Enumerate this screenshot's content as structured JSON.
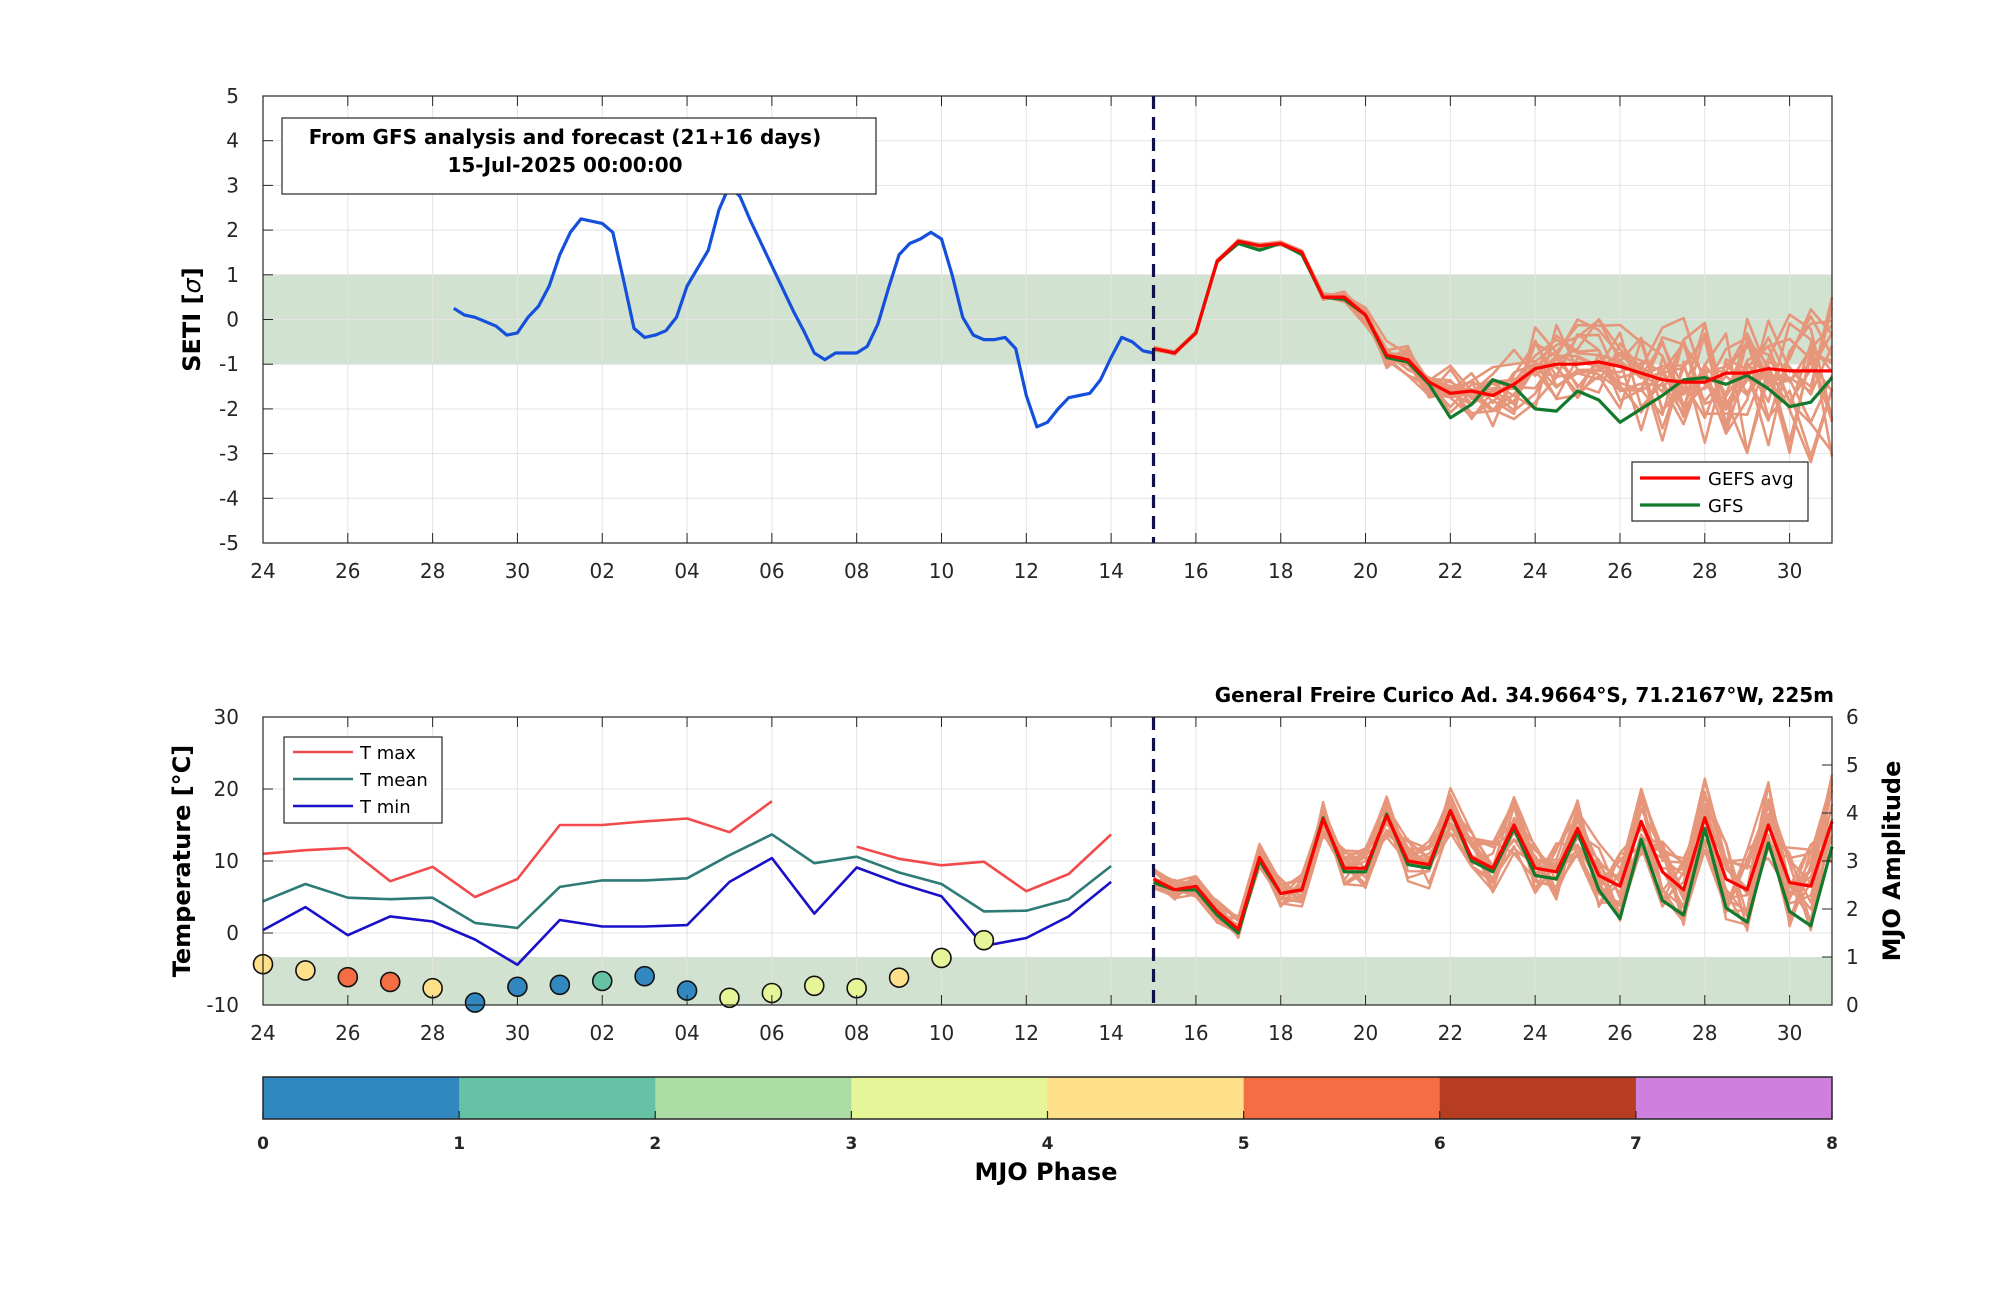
{
  "colors": {
    "observed": "#1450dc",
    "gefs_avg": "#ff0000",
    "gfs": "#117a2c",
    "ensemble": "#e6967a",
    "band": "#d2e2d0",
    "tmax": "#f24a4a",
    "tmean": "#2e7b76",
    "tmin": "#1a10c8",
    "divider": "#10104a"
  },
  "chart_data": [
    {
      "type": "line",
      "panel": "seti",
      "annotation": {
        "line1": "From GFS analysis and forecast (21+16 days)",
        "line2": "15-Jul-2025 00:00:00"
      },
      "ylabel": "SETI [σ]",
      "ylabel_text": "SETI [",
      "ylabel_sym": "σ",
      "ylabel_end": "]",
      "xlim": [
        0,
        37
      ],
      "ylim": [
        -5,
        5
      ],
      "yticks": [
        -5,
        -4,
        -3,
        -2,
        -1,
        0,
        1,
        2,
        3,
        4,
        5
      ],
      "xticks": [
        0,
        2,
        4,
        6,
        8,
        10,
        12,
        14,
        16,
        18,
        20,
        22,
        24,
        26,
        28,
        30,
        32,
        34,
        36
      ],
      "xticklabels": [
        "24",
        "26",
        "28",
        "30",
        "02",
        "04",
        "06",
        "08",
        "10",
        "12",
        "14",
        "16",
        "18",
        "20",
        "22",
        "24",
        "26",
        "28",
        "30"
      ],
      "band": [
        -1,
        1
      ],
      "forecast_start": 21,
      "grid": true,
      "legend_placement": "bottom-right",
      "legend": [
        "GEFS avg",
        "GFS"
      ],
      "series": [
        {
          "name": "observed",
          "x": [
            4.5,
            4.75,
            5,
            5.25,
            5.5,
            5.75,
            6,
            6.25,
            6.5,
            6.75,
            7,
            7.25,
            7.5,
            7.75,
            8,
            8.25,
            8.5,
            8.75,
            9,
            9.25,
            9.5,
            9.75,
            10,
            10.25,
            10.5,
            10.75,
            11,
            11.25,
            11.5,
            11.75,
            12,
            12.25,
            12.5,
            12.75,
            13,
            13.25,
            13.5,
            13.75,
            14,
            14.25,
            14.5,
            14.75,
            15,
            15.25,
            15.5,
            15.75,
            16,
            16.25,
            16.5,
            16.75,
            17,
            17.25,
            17.5,
            17.75,
            18,
            18.25,
            18.5,
            18.75,
            19,
            19.25,
            19.5,
            19.75,
            20,
            20.25,
            20.5,
            20.75,
            21
          ],
          "y": [
            0.25,
            0.1,
            0.05,
            -0.05,
            -0.15,
            -0.35,
            -0.3,
            0.05,
            0.3,
            0.75,
            1.45,
            1.95,
            2.25,
            2.2,
            2.15,
            1.95,
            0.9,
            -0.2,
            -0.4,
            -0.35,
            -0.25,
            0.05,
            0.75,
            1.15,
            1.55,
            2.45,
            3.0,
            2.75,
            2.2,
            1.7,
            1.2,
            0.7,
            0.2,
            -0.25,
            -0.75,
            -0.9,
            -0.75,
            -0.75,
            -0.75,
            -0.6,
            -0.1,
            0.7,
            1.45,
            1.7,
            1.8,
            1.95,
            1.8,
            1.0,
            0.05,
            -0.35,
            -0.45,
            -0.45,
            -0.4,
            -0.65,
            -1.7,
            -2.4,
            -2.3,
            -2.0,
            -1.75,
            -1.7,
            -1.65,
            -1.35,
            -0.85,
            -0.4,
            -0.5,
            -0.7,
            -0.75
          ]
        },
        {
          "name": "GEFS avg",
          "x": [
            21,
            21.5,
            22,
            22.5,
            23,
            23.5,
            24,
            24.5,
            25,
            25.5,
            26,
            26.5,
            27,
            27.5,
            28,
            28.5,
            29,
            29.5,
            30,
            30.5,
            31,
            31.5,
            32,
            32.5,
            33,
            33.5,
            34,
            34.5,
            35,
            35.5,
            36,
            36.5,
            37
          ],
          "y": [
            -0.65,
            -0.75,
            -0.3,
            1.3,
            1.75,
            1.65,
            1.7,
            1.5,
            0.5,
            0.5,
            0.1,
            -0.8,
            -0.9,
            -1.4,
            -1.65,
            -1.6,
            -1.7,
            -1.45,
            -1.1,
            -1.0,
            -1.0,
            -0.95,
            -1.05,
            -1.2,
            -1.35,
            -1.4,
            -1.4,
            -1.2,
            -1.2,
            -1.1,
            -1.15,
            -1.15,
            -1.15
          ]
        },
        {
          "name": "GFS",
          "x": [
            21,
            21.5,
            22,
            22.5,
            23,
            23.5,
            24,
            24.5,
            25,
            25.5,
            26,
            26.5,
            27,
            27.5,
            28,
            28.5,
            29,
            29.5,
            30,
            30.5,
            31,
            31.5,
            32,
            32.5,
            33,
            33.5,
            34,
            34.5,
            35,
            35.5,
            36,
            36.5,
            37
          ],
          "y": [
            -0.65,
            -0.75,
            -0.3,
            1.3,
            1.7,
            1.55,
            1.7,
            1.45,
            0.5,
            0.45,
            0.1,
            -0.85,
            -0.95,
            -1.45,
            -2.2,
            -1.9,
            -1.35,
            -1.5,
            -2.0,
            -2.05,
            -1.6,
            -1.8,
            -2.3,
            -2.0,
            -1.7,
            -1.35,
            -1.3,
            -1.45,
            -1.25,
            -1.55,
            -1.95,
            -1.85,
            -1.3
          ]
        }
      ]
    },
    {
      "type": "line",
      "panel": "temperature",
      "title": "General Freire Curico Ad. 34.9664°S, 71.2167°W, 225m",
      "ylabel": "Temperature [°C]",
      "y2label": "MJO Amplitude",
      "xlim": [
        0,
        37
      ],
      "ylim": [
        -10,
        30
      ],
      "y2lim": [
        0,
        6
      ],
      "yticks": [
        -10,
        0,
        10,
        20,
        30
      ],
      "y2ticks": [
        0,
        1,
        2,
        3,
        4,
        5,
        6
      ],
      "xticks": [
        0,
        2,
        4,
        6,
        8,
        10,
        12,
        14,
        16,
        18,
        20,
        22,
        24,
        26,
        28,
        30,
        32,
        34,
        36
      ],
      "xticklabels": [
        "24",
        "26",
        "28",
        "30",
        "02",
        "04",
        "06",
        "08",
        "10",
        "12",
        "14",
        "16",
        "18",
        "20",
        "22",
        "24",
        "26",
        "28",
        "30"
      ],
      "band_mjo_amplitude": [
        0,
        1
      ],
      "forecast_start": 21,
      "grid": true,
      "legend_placement": "top-left",
      "legend": [
        "T max",
        "T mean",
        "T min"
      ],
      "series": [
        {
          "name": "T max",
          "segments": [
            {
              "x": [
                0,
                1,
                2,
                3,
                4,
                5,
                6,
                7,
                8,
                9,
                10,
                11,
                12
              ],
              "y": [
                11.0,
                11.5,
                11.8,
                7.2,
                9.2,
                5.0,
                7.5,
                15.0,
                15.0,
                15.5,
                15.9,
                14.0,
                18.3
              ]
            },
            {
              "x": [
                14,
                15,
                16,
                17,
                18,
                19,
                20
              ],
              "y": [
                12.0,
                10.3,
                9.4,
                9.9,
                5.8,
                8.2,
                13.7
              ]
            }
          ]
        },
        {
          "name": "T mean",
          "segments": [
            {
              "x": [
                0,
                1,
                2,
                3,
                4,
                5,
                6,
                7,
                8,
                9,
                10,
                11,
                12,
                13,
                14,
                15,
                16,
                17,
                18,
                19,
                20
              ],
              "y": [
                4.4,
                6.8,
                4.9,
                4.7,
                4.9,
                1.4,
                0.7,
                6.4,
                7.3,
                7.3,
                7.6,
                10.8,
                13.7,
                9.7,
                10.6,
                8.4,
                6.8,
                3.0,
                3.1,
                4.7,
                9.3
              ]
            }
          ]
        },
        {
          "name": "T min",
          "segments": [
            {
              "x": [
                0,
                1,
                2,
                3,
                4,
                5,
                6,
                7,
                8,
                9,
                10,
                11,
                12,
                13,
                14,
                15,
                16,
                17,
                18,
                19,
                20
              ],
              "y": [
                0.4,
                3.6,
                -0.3,
                2.3,
                1.6,
                -0.9,
                -4.4,
                1.8,
                0.9,
                0.9,
                1.1,
                7.1,
                10.4,
                2.7,
                9.1,
                6.9,
                5.1,
                -1.8,
                -0.7,
                2.3,
                7.1
              ]
            }
          ]
        },
        {
          "name": "GEFS avg",
          "x": [
            21,
            21.5,
            22,
            22.5,
            23,
            23.5,
            24,
            24.5,
            25,
            25.5,
            26,
            26.5,
            27,
            27.5,
            28,
            28.5,
            29,
            29.5,
            30,
            30.5,
            31,
            31.5,
            32,
            32.5,
            33,
            33.5,
            34,
            34.5,
            35,
            35.5,
            36,
            36.5,
            37
          ],
          "y": [
            7.5,
            6.0,
            6.5,
            3.0,
            0.5,
            10.5,
            5.5,
            6.0,
            15.8,
            9.0,
            9.0,
            16.3,
            10.0,
            9.5,
            17.0,
            10.5,
            9.0,
            15.0,
            9.0,
            8.5,
            14.5,
            8.0,
            6.5,
            15.5,
            8.5,
            6.0,
            16.0,
            7.5,
            6.0,
            15.0,
            7.0,
            6.5,
            15.5
          ]
        },
        {
          "name": "GFS",
          "x": [
            21,
            21.5,
            22,
            22.5,
            23,
            23.5,
            24,
            24.5,
            25,
            25.5,
            26,
            26.5,
            27,
            27.5,
            28,
            28.5,
            29,
            29.5,
            30,
            30.5,
            31,
            31.5,
            32,
            32.5,
            33,
            33.5,
            34,
            34.5,
            35,
            35.5,
            36,
            36.5,
            37
          ],
          "y": [
            7.0,
            6.0,
            6.0,
            2.5,
            0.0,
            10.0,
            5.5,
            6.0,
            16.0,
            8.5,
            8.5,
            16.5,
            9.5,
            9.0,
            17.0,
            10.0,
            8.5,
            14.5,
            8.0,
            7.5,
            14.0,
            6.0,
            2.0,
            13.0,
            4.5,
            2.5,
            14.5,
            3.5,
            1.5,
            12.5,
            3.0,
            1.0,
            12.0
          ]
        }
      ],
      "mjo": {
        "x": [
          0,
          1,
          2,
          3,
          4,
          5,
          6,
          7,
          8,
          9,
          10,
          11,
          12,
          13,
          14,
          15,
          16,
          17
        ],
        "amplitude": [
          0.85,
          0.72,
          0.58,
          0.48,
          0.35,
          0.05,
          0.38,
          0.42,
          0.5,
          0.6,
          0.3,
          0.15,
          0.25,
          0.4,
          0.35,
          0.57,
          0.98,
          1.35
        ],
        "phase": [
          4.5,
          4.5,
          5.5,
          5.5,
          4.5,
          0.5,
          0.5,
          0.5,
          1.5,
          0.5,
          0.5,
          3.5,
          3.5,
          3.5,
          3.5,
          4.5,
          3.5,
          3.5
        ]
      }
    }
  ],
  "colorbar": {
    "label": "MJO Phase",
    "ticks": [
      "0",
      "1",
      "2",
      "3",
      "4",
      "5",
      "6",
      "7",
      "8"
    ],
    "colors": [
      "#3188c0",
      "#66c2a5",
      "#abdda4",
      "#e6f598",
      "#fee08b",
      "#f46d43",
      "#b63d22",
      "#cf80de"
    ]
  }
}
